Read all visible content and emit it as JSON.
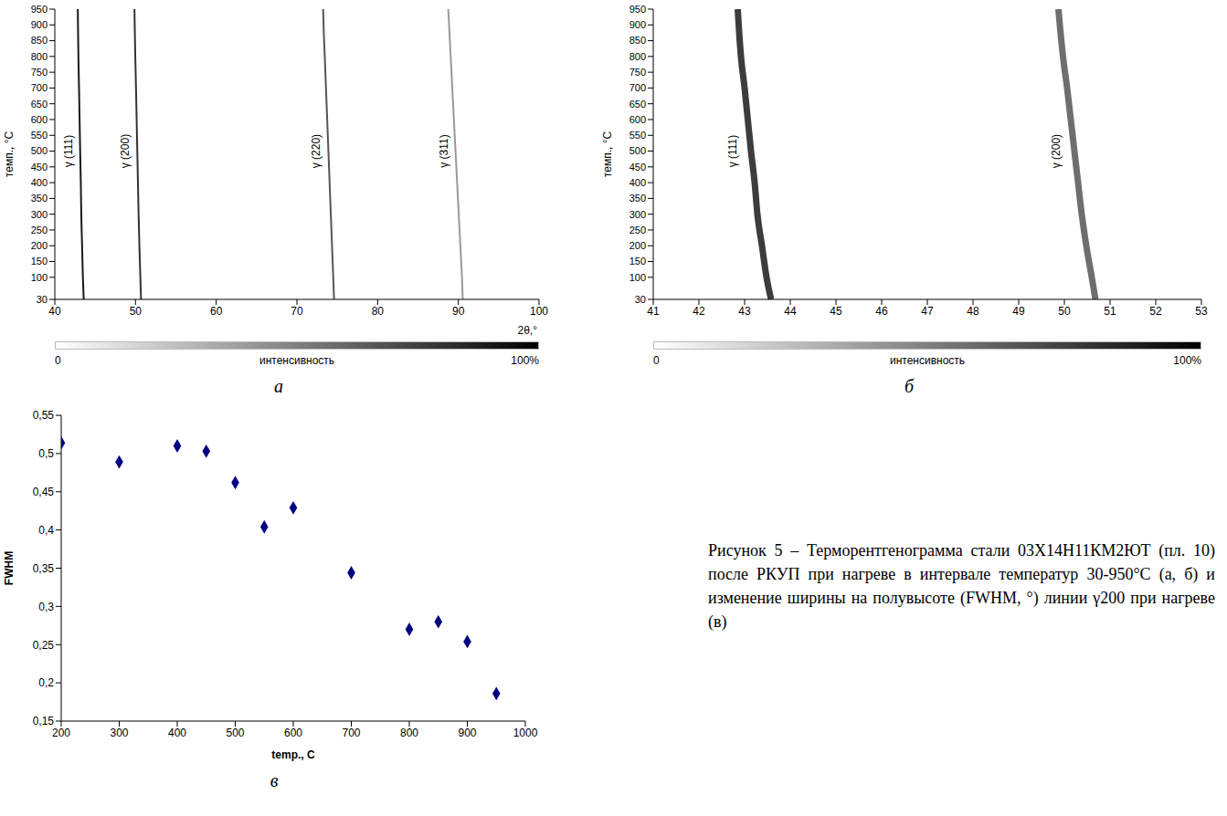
{
  "caption": "Рисунок 5 – Терморентгенограмма стали 03Х14Н11КМ2ЮТ (пл. 10) после РКУП при нагреве в интервале температур 30-950°С (а, б) и изменение ширины на полувысоте (FWHM, °) линии γ200 при нагреве (в)",
  "chart_data": [
    {
      "panel_label": "а",
      "type": "line",
      "x_label": "2θ,°",
      "y_label": "темп., °С",
      "xlim": [
        40,
        100
      ],
      "xticks": [
        40,
        50,
        60,
        70,
        80,
        90,
        100
      ],
      "ylim": [
        30,
        950
      ],
      "yticks": [
        30,
        100,
        150,
        200,
        250,
        300,
        350,
        400,
        450,
        500,
        550,
        600,
        650,
        700,
        750,
        800,
        850,
        900,
        950
      ],
      "series": [
        {
          "name": "γ (111)",
          "color": "#1a1a1a",
          "x": [
            43.58,
            43.48,
            43.38,
            43.28,
            43.22,
            43.14,
            43.07,
            43.0,
            42.92,
            42.87,
            42.85
          ],
          "values": [
            30,
            100,
            200,
            300,
            400,
            500,
            600,
            700,
            800,
            900,
            950
          ]
        },
        {
          "name": "γ (200)",
          "color": "#333333",
          "x": [
            50.68,
            50.6,
            50.48,
            50.38,
            50.3,
            50.22,
            50.14,
            50.06,
            49.97,
            49.9,
            49.87
          ],
          "values": [
            30,
            100,
            200,
            300,
            400,
            500,
            600,
            700,
            800,
            900,
            950
          ]
        },
        {
          "name": "γ (220)",
          "color": "#555555",
          "x": [
            74.6,
            74.5,
            74.35,
            74.2,
            74.05,
            73.9,
            73.75,
            73.6,
            73.45,
            73.3,
            73.25
          ],
          "values": [
            30,
            100,
            200,
            300,
            400,
            500,
            600,
            700,
            800,
            900,
            950
          ]
        },
        {
          "name": "γ (311)",
          "color": "#999999",
          "x": [
            90.55,
            90.45,
            90.25,
            90.05,
            89.85,
            89.65,
            89.45,
            89.25,
            89.05,
            88.85,
            88.75
          ],
          "values": [
            30,
            100,
            200,
            300,
            400,
            500,
            600,
            700,
            800,
            900,
            950
          ]
        }
      ],
      "colorbar": {
        "label": "интенсивность",
        "range": [
          0,
          100
        ],
        "ticks": [
          {
            "value": 0,
            "label": "0"
          },
          {
            "value": 100,
            "label": "100%"
          }
        ]
      }
    },
    {
      "panel_label": "б",
      "type": "line",
      "y_label": "темп., °С",
      "xlim": [
        41,
        53
      ],
      "xticks": [
        41,
        42,
        43,
        44,
        45,
        46,
        47,
        48,
        49,
        50,
        51,
        52,
        53
      ],
      "ylim": [
        30,
        950
      ],
      "yticks": [
        30,
        100,
        150,
        200,
        250,
        300,
        350,
        400,
        450,
        500,
        550,
        600,
        650,
        700,
        750,
        800,
        850,
        900,
        950
      ],
      "series": [
        {
          "name": "γ (111)",
          "color": "#1a1a1a",
          "x": [
            43.58,
            43.48,
            43.38,
            43.28,
            43.22,
            43.14,
            43.07,
            43.0,
            42.92,
            42.87,
            42.85
          ],
          "values": [
            30,
            100,
            200,
            300,
            400,
            500,
            600,
            700,
            800,
            900,
            950
          ]
        },
        {
          "name": "γ (200)",
          "color": "#555555",
          "x": [
            50.68,
            50.6,
            50.48,
            50.38,
            50.3,
            50.22,
            50.14,
            50.06,
            49.97,
            49.9,
            49.87
          ],
          "values": [
            30,
            100,
            200,
            300,
            400,
            500,
            600,
            700,
            800,
            900,
            950
          ]
        }
      ],
      "colorbar": {
        "label": "интенсивность",
        "range": [
          0,
          100
        ],
        "ticks": [
          {
            "value": 0,
            "label": "0"
          },
          {
            "value": 100,
            "label": "100%"
          }
        ]
      }
    },
    {
      "panel_label": "в",
      "type": "scatter",
      "x_label": "temp., C",
      "y_label": "FWHM",
      "xlim": [
        200,
        1000
      ],
      "xticks": [
        200,
        300,
        400,
        500,
        600,
        700,
        800,
        900,
        1000
      ],
      "ylim": [
        0.15,
        0.55
      ],
      "yticks": [
        {
          "value": 0.15,
          "label": "0,15"
        },
        {
          "value": 0.2,
          "label": "0,2"
        },
        {
          "value": 0.25,
          "label": "0,25"
        },
        {
          "value": 0.3,
          "label": "0,3"
        },
        {
          "value": 0.35,
          "label": "0,35"
        },
        {
          "value": 0.4,
          "label": "0,4"
        },
        {
          "value": 0.45,
          "label": "0,45"
        },
        {
          "value": 0.5,
          "label": "0,5"
        },
        {
          "value": 0.55,
          "label": "0,55"
        }
      ],
      "x": [
        200,
        300,
        400,
        450,
        500,
        550,
        600,
        700,
        800,
        850,
        900,
        950
      ],
      "values": [
        0.514,
        0.489,
        0.51,
        0.503,
        0.462,
        0.404,
        0.429,
        0.344,
        0.27,
        0.28,
        0.254,
        0.186
      ],
      "color": "#000080",
      "marker": "diamond",
      "grid": false
    }
  ]
}
